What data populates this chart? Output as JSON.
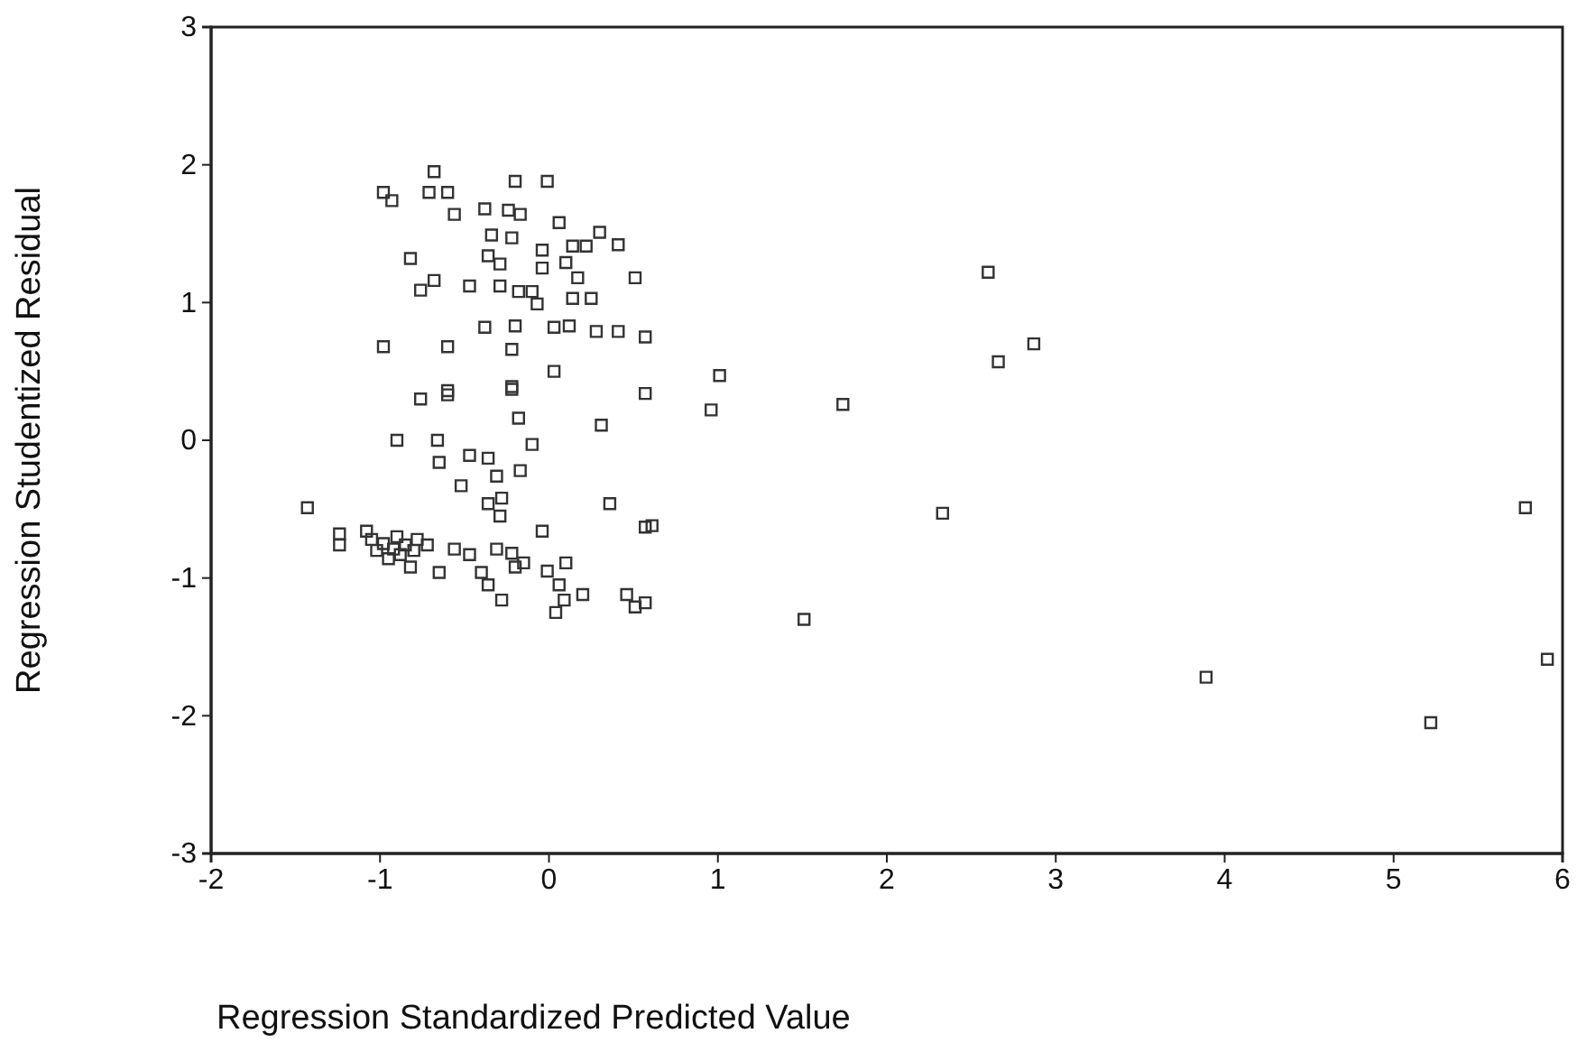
{
  "chart_data": {
    "type": "scatter",
    "xlabel": "Regression Standardized Predicted Value",
    "ylabel": "Regression Studentized Residual",
    "xlim": [
      -2,
      6
    ],
    "ylim": [
      -3,
      3
    ],
    "xticks": [
      -2,
      -1,
      0,
      1,
      2,
      3,
      4,
      5,
      6
    ],
    "yticks": [
      -3,
      -2,
      -1,
      0,
      1,
      2,
      3
    ],
    "marker": "square",
    "grid": false,
    "series": [
      {
        "color": "#333333",
        "x": [
          -0.98,
          -0.93,
          -0.68,
          -0.71,
          -0.6,
          -0.56,
          -0.2,
          -0.01,
          -0.38,
          -0.24,
          -0.17,
          0.06,
          -0.34,
          -0.22,
          0.3,
          0.41,
          -0.36,
          -0.04,
          0.14,
          0.22,
          -0.82,
          -0.29,
          -0.04,
          0.1,
          0.17,
          0.51,
          -0.76,
          -0.68,
          -0.47,
          -0.29,
          -0.18,
          -0.1,
          0.14,
          0.25,
          -0.07,
          -0.38,
          -0.2,
          0.03,
          0.12,
          0.28,
          0.41,
          -0.98,
          -0.6,
          -0.22,
          0.03,
          -0.22,
          -0.6,
          0.57,
          0.57,
          1.01,
          0.96,
          1.74,
          2.6,
          2.87,
          2.66,
          2.33,
          5.78,
          5.91,
          5.22,
          3.89,
          1.51,
          0.61,
          0.51,
          -0.76,
          -0.6,
          -0.22,
          -0.18,
          0.31,
          -0.9,
          -0.66,
          -0.1,
          -0.65,
          -0.47,
          -0.36,
          -0.31,
          -0.17,
          -0.52,
          -0.36,
          -0.28,
          -0.29,
          0.36,
          -1.43,
          -0.04,
          -1.24,
          -1.24,
          -0.98,
          -0.92,
          -0.88,
          -0.85,
          -0.95,
          -1.02,
          -0.8,
          -0.78,
          -1.05,
          -0.9,
          -1.08,
          -0.72,
          -0.82,
          -0.65,
          -0.56,
          -0.47,
          -0.31,
          -0.22,
          -0.15,
          -0.4,
          -0.36,
          -0.28,
          -0.2,
          -0.01,
          0.1,
          0.06,
          0.09,
          0.2,
          0.04,
          0.46,
          0.57,
          0.57
        ],
        "values": [
          1.8,
          1.74,
          1.95,
          1.8,
          1.8,
          1.64,
          1.88,
          1.88,
          1.68,
          1.67,
          1.64,
          1.58,
          1.49,
          1.47,
          1.51,
          1.42,
          1.34,
          1.38,
          1.41,
          1.41,
          1.32,
          1.28,
          1.25,
          1.29,
          1.18,
          1.18,
          1.09,
          1.16,
          1.12,
          1.12,
          1.08,
          1.08,
          1.03,
          1.03,
          0.99,
          0.82,
          0.83,
          0.82,
          0.83,
          0.79,
          0.79,
          0.68,
          0.68,
          0.66,
          0.5,
          0.39,
          0.36,
          0.75,
          0.34,
          0.47,
          0.22,
          0.26,
          1.22,
          0.7,
          0.57,
          -0.53,
          -0.49,
          -1.59,
          -2.05,
          -1.72,
          -1.3,
          -0.62,
          -1.21,
          0.3,
          0.33,
          0.37,
          0.16,
          0.11,
          0.0,
          0.0,
          -0.03,
          -0.16,
          -0.11,
          -0.13,
          -0.26,
          -0.22,
          -0.33,
          -0.46,
          -0.42,
          -0.55,
          -0.46,
          -0.49,
          -0.66,
          -0.68,
          -0.76,
          -0.75,
          -0.79,
          -0.83,
          -0.76,
          -0.86,
          -0.8,
          -0.8,
          -0.72,
          -0.72,
          -0.7,
          -0.66,
          -0.76,
          -0.92,
          -0.96,
          -0.79,
          -0.83,
          -0.79,
          -0.82,
          -0.89,
          -0.96,
          -1.05,
          -1.16,
          -0.92,
          -0.95,
          -0.89,
          -1.05,
          -1.16,
          -1.12,
          -1.25,
          -1.12,
          -1.18,
          -0.63
        ]
      }
    ]
  }
}
